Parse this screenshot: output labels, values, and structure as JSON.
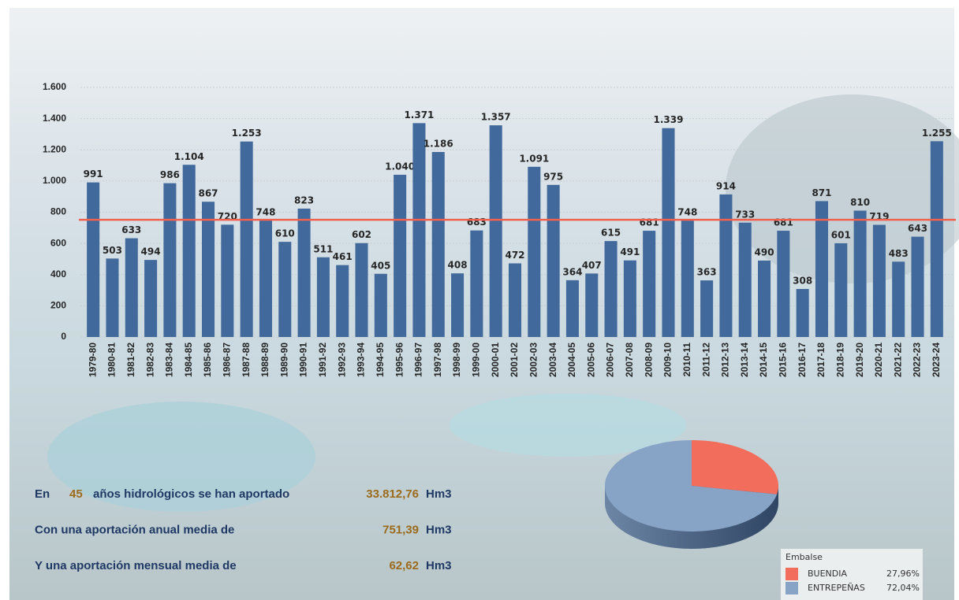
{
  "chart_data": [
    {
      "type": "bar",
      "categories": [
        "1979-80",
        "1980-81",
        "1981-82",
        "1982-83",
        "1983-84",
        "1984-85",
        "1985-86",
        "1986-87",
        "1987-88",
        "1988-89",
        "1989-90",
        "1990-91",
        "1991-92",
        "1992-93",
        "1993-94",
        "1994-95",
        "1995-96",
        "1996-97",
        "1997-98",
        "1998-99",
        "1999-00",
        "2000-01",
        "2001-02",
        "2002-03",
        "2003-04",
        "2004-05",
        "2005-06",
        "2006-07",
        "2007-08",
        "2008-09",
        "2009-10",
        "2010-11",
        "2011-12",
        "2012-13",
        "2013-14",
        "2014-15",
        "2015-16",
        "2016-17",
        "2017-18",
        "2018-19",
        "2019-20",
        "2020-21",
        "2021-22",
        "2022-23",
        "2023-24"
      ],
      "values": [
        991,
        503,
        633,
        494,
        986,
        1104,
        867,
        720,
        1253,
        748,
        610,
        823,
        511,
        461,
        602,
        405,
        1040,
        1371,
        1186,
        408,
        683,
        1357,
        472,
        1091,
        975,
        364,
        407,
        615,
        491,
        681,
        1339,
        748,
        363,
        914,
        733,
        490,
        681,
        308,
        871,
        601,
        810,
        719,
        483,
        643,
        1255
      ],
      "value_labels": [
        "991",
        "503",
        "633",
        "494",
        "986",
        "1.104",
        "867",
        "720",
        "1.253",
        "748",
        "610",
        "823",
        "511",
        "461",
        "602",
        "405",
        "1.040",
        "1.371",
        "1.186",
        "408",
        "683",
        "1.357",
        "472",
        "1.091",
        "975",
        "364",
        "407",
        "615",
        "491",
        "681",
        "1.339",
        "748",
        "363",
        "914",
        "733",
        "490",
        "681",
        "308",
        "871",
        "601",
        "810",
        "719",
        "483",
        "643",
        "1.255"
      ],
      "color": "#41699b",
      "ylim": [
        0,
        1600
      ],
      "yticks": [
        0,
        200,
        400,
        600,
        800,
        {
          "value": 1000,
          "label": "1.000"
        },
        {
          "value": 1200,
          "label": "1.200"
        },
        {
          "value": 1400,
          "label": "1.400"
        },
        {
          "value": 1600,
          "label": "1.600"
        }
      ],
      "grid": true,
      "reference_line": {
        "value": 751.39,
        "color": "#f0624f"
      }
    },
    {
      "type": "pie",
      "legend_title": "Embalse",
      "categories": [
        "BUENDIA",
        "ENTREPEÑAS"
      ],
      "values": [
        27.96,
        72.04
      ],
      "value_labels": [
        "27,96%",
        "72,04%"
      ],
      "colors": [
        "#f26d5b",
        "#87a3c6"
      ],
      "legend": "bottom-right"
    }
  ],
  "summary": {
    "lines": [
      {
        "prefix": "En",
        "count": "45",
        "text": "años hidrológicos se han aportado",
        "value": "33.812,76",
        "unit": "Hm3"
      },
      {
        "text": "Con una aportación anual media de",
        "value": "751,39",
        "unit": "Hm3"
      },
      {
        "text": "Y una aportación mensual media de",
        "value": "62,62",
        "unit": "Hm3"
      }
    ]
  }
}
